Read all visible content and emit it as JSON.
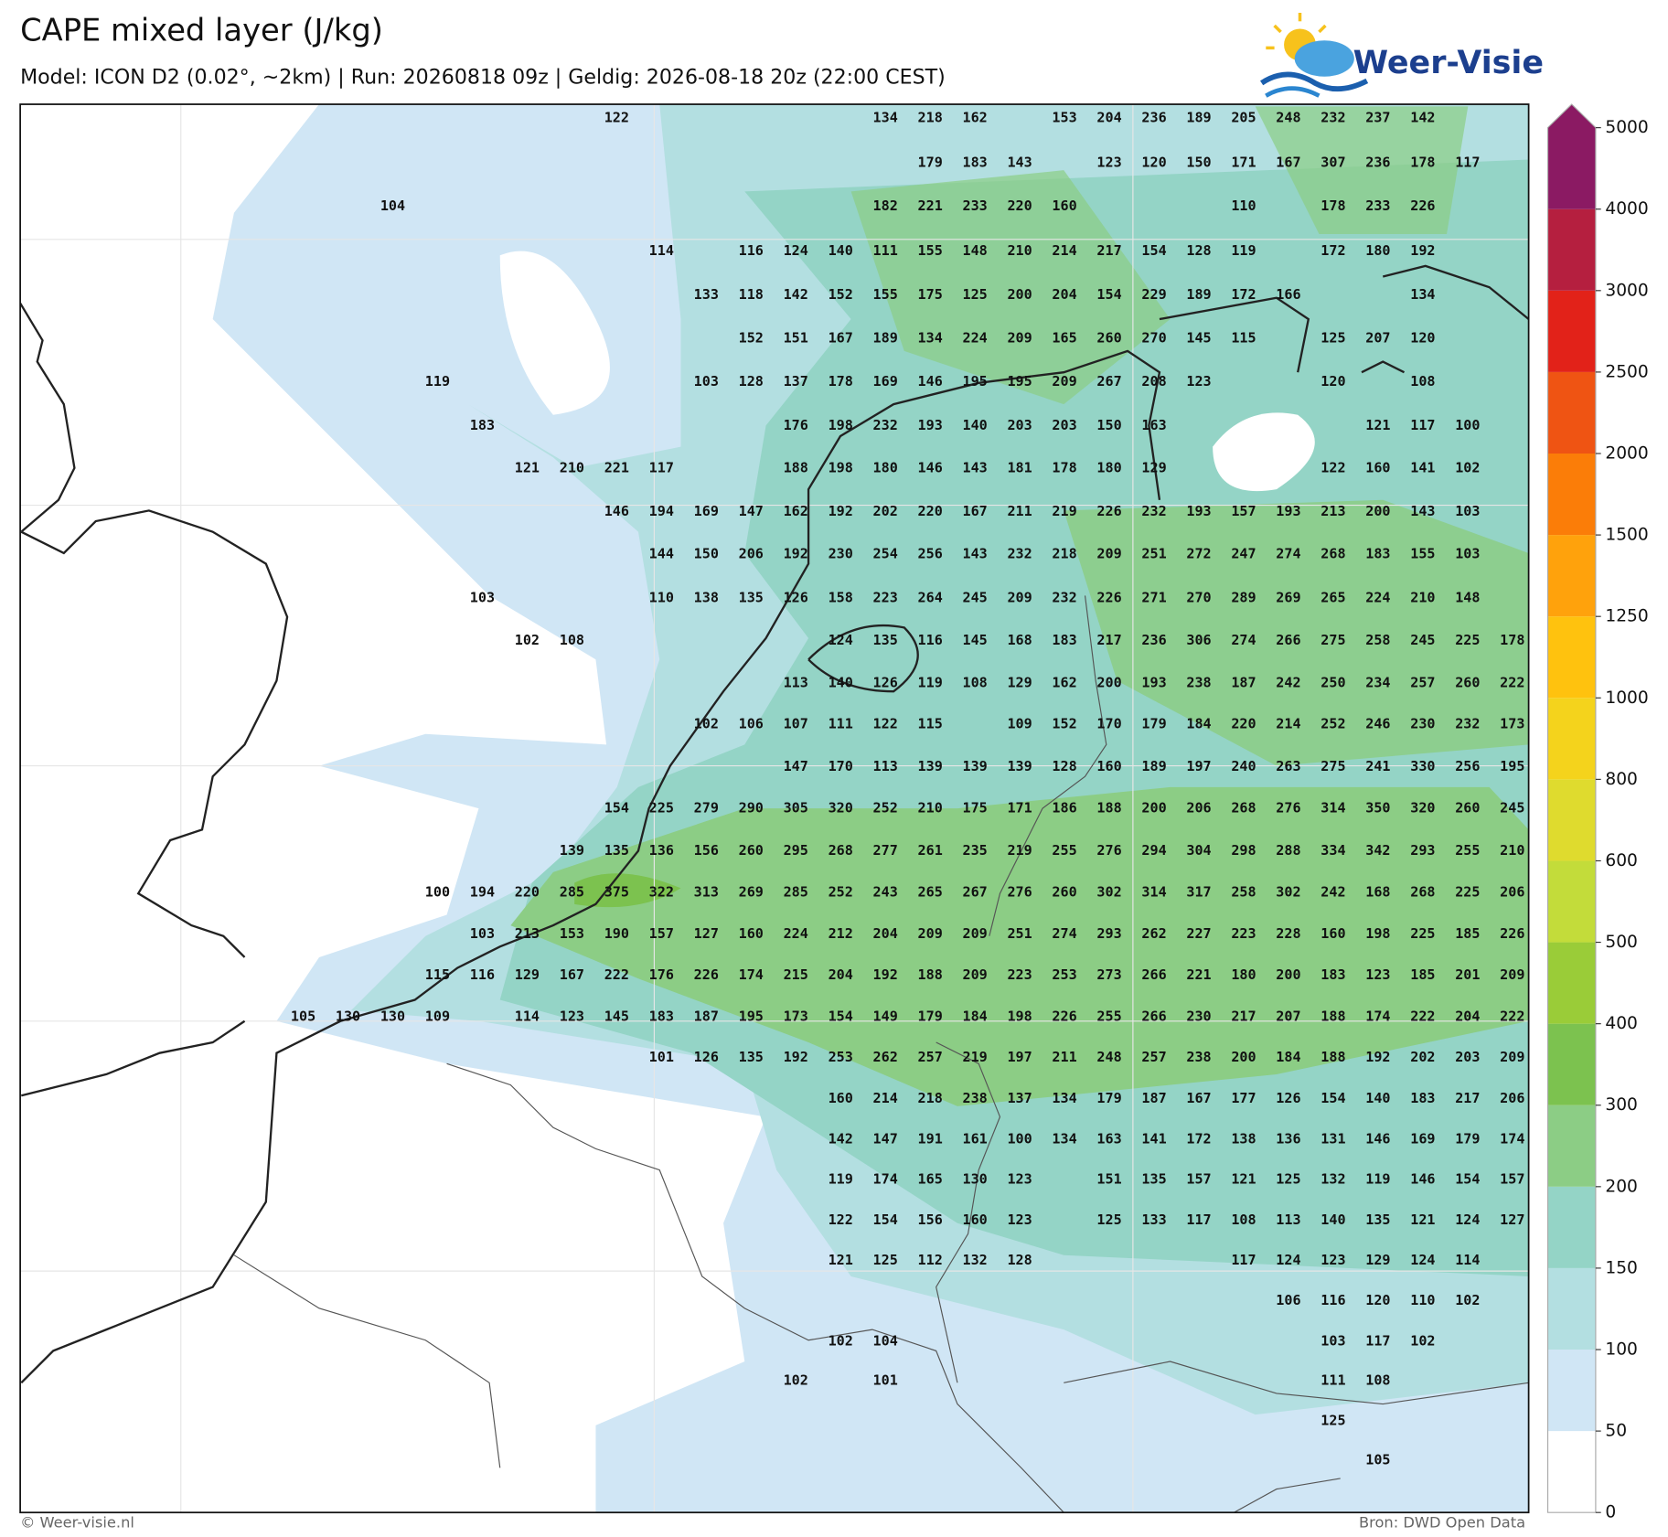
{
  "header": {
    "title": "CAPE mixed layer (J/kg)",
    "subtitle": "Model: ICON D2 (0.02°, ~2km)  |  Run: 20260818 09z  |  Geldig: 2026-08-18 20z (22:00 CEST)",
    "logo": "Weer-Visie"
  },
  "footer": {
    "left": "© Weer-visie.nl",
    "right": "Bron: DWD Open Data"
  },
  "colorbar": {
    "ticks": [
      0,
      50,
      100,
      150,
      200,
      300,
      400,
      500,
      600,
      800,
      1000,
      1250,
      1500,
      2000,
      2500,
      3000,
      4000,
      5000
    ],
    "colors": [
      "#ffffff",
      "#d0e6f5",
      "#b3dfe1",
      "#94d4c6",
      "#8ccd85",
      "#7cc24f",
      "#9acc38",
      "#c3dc3a",
      "#dfdb2e",
      "#f4d31c",
      "#ffc20e",
      "#ffa20c",
      "#fb7d08",
      "#ef5413",
      "#e22219",
      "#b51f3f",
      "#8b1a63"
    ]
  },
  "map": {
    "rows": [
      [
        null,
        null,
        null,
        null,
        null,
        null,
        null,
        122,
        null,
        null,
        null,
        null,
        null,
        134,
        218,
        162,
        null,
        153,
        204,
        236,
        189,
        205,
        248,
        232,
        237,
        142,
        null,
        null
      ],
      [
        null,
        null,
        null,
        null,
        null,
        null,
        null,
        null,
        null,
        null,
        null,
        null,
        null,
        null,
        179,
        183,
        143,
        null,
        123,
        120,
        150,
        171,
        167,
        307,
        236,
        178,
        117,
        null
      ],
      [
        null,
        null,
        104,
        null,
        null,
        null,
        null,
        null,
        null,
        null,
        null,
        null,
        null,
        182,
        221,
        233,
        220,
        160,
        null,
        null,
        null,
        110,
        null,
        178,
        233,
        226,
        null,
        null
      ],
      [
        null,
        null,
        null,
        null,
        null,
        null,
        null,
        null,
        114,
        null,
        116,
        124,
        140,
        111,
        155,
        148,
        210,
        214,
        217,
        154,
        128,
        119,
        null,
        172,
        180,
        192,
        null,
        null
      ],
      [
        null,
        null,
        null,
        null,
        null,
        null,
        null,
        null,
        null,
        133,
        118,
        142,
        152,
        155,
        175,
        125,
        200,
        204,
        154,
        229,
        189,
        172,
        166,
        null,
        null,
        134,
        null,
        null
      ],
      [
        null,
        null,
        null,
        null,
        null,
        null,
        null,
        null,
        null,
        null,
        152,
        151,
        167,
        189,
        134,
        224,
        209,
        165,
        260,
        270,
        145,
        115,
        null,
        125,
        207,
        120,
        null,
        null
      ],
      [
        null,
        null,
        null,
        119,
        null,
        null,
        null,
        null,
        null,
        103,
        128,
        137,
        178,
        169,
        146,
        195,
        195,
        209,
        267,
        208,
        123,
        null,
        null,
        120,
        null,
        108,
        null,
        null
      ],
      [
        null,
        null,
        null,
        null,
        183,
        null,
        null,
        null,
        null,
        null,
        null,
        176,
        198,
        232,
        193,
        140,
        203,
        203,
        150,
        163,
        null,
        null,
        null,
        null,
        121,
        117,
        100,
        null
      ],
      [
        null,
        null,
        null,
        null,
        null,
        121,
        210,
        221,
        117,
        null,
        null,
        188,
        198,
        180,
        146,
        143,
        181,
        178,
        180,
        129,
        null,
        null,
        null,
        122,
        160,
        141,
        102,
        null
      ],
      [
        null,
        null,
        null,
        null,
        null,
        null,
        null,
        146,
        194,
        169,
        147,
        162,
        192,
        202,
        220,
        167,
        211,
        219,
        226,
        232,
        193,
        157,
        193,
        213,
        200,
        143,
        103,
        null
      ],
      [
        null,
        null,
        null,
        null,
        null,
        null,
        null,
        null,
        144,
        150,
        206,
        192,
        230,
        254,
        256,
        143,
        232,
        218,
        209,
        251,
        272,
        247,
        274,
        268,
        183,
        155,
        103,
        null
      ],
      [
        null,
        null,
        null,
        null,
        103,
        null,
        null,
        null,
        110,
        138,
        135,
        126,
        158,
        223,
        264,
        245,
        209,
        232,
        226,
        271,
        270,
        289,
        269,
        265,
        224,
        210,
        148,
        null
      ],
      [
        null,
        null,
        null,
        null,
        null,
        102,
        108,
        null,
        null,
        null,
        null,
        null,
        124,
        135,
        116,
        145,
        168,
        183,
        217,
        236,
        306,
        274,
        266,
        275,
        258,
        245,
        225,
        178
      ],
      [
        null,
        null,
        null,
        null,
        null,
        null,
        null,
        null,
        null,
        null,
        null,
        113,
        140,
        126,
        119,
        108,
        129,
        162,
        200,
        193,
        238,
        187,
        242,
        250,
        234,
        257,
        260,
        222
      ],
      [
        null,
        null,
        null,
        null,
        null,
        null,
        null,
        null,
        null,
        102,
        106,
        107,
        111,
        122,
        115,
        null,
        109,
        152,
        170,
        179,
        184,
        220,
        214,
        252,
        246,
        230,
        232,
        173
      ],
      [
        null,
        null,
        null,
        null,
        null,
        null,
        null,
        null,
        null,
        null,
        null,
        147,
        170,
        113,
        139,
        139,
        139,
        128,
        160,
        189,
        197,
        240,
        263,
        275,
        241,
        330,
        256,
        195
      ],
      [
        null,
        null,
        null,
        null,
        null,
        null,
        null,
        154,
        225,
        279,
        290,
        305,
        320,
        252,
        210,
        175,
        171,
        186,
        188,
        200,
        206,
        268,
        276,
        314,
        350,
        320,
        260,
        245
      ],
      [
        null,
        null,
        null,
        null,
        null,
        null,
        139,
        135,
        136,
        156,
        260,
        295,
        268,
        277,
        261,
        235,
        219,
        255,
        276,
        294,
        304,
        298,
        288,
        334,
        342,
        293,
        255,
        210
      ],
      [
        null,
        null,
        null,
        100,
        194,
        220,
        285,
        375,
        322,
        313,
        269,
        285,
        252,
        243,
        265,
        267,
        276,
        260,
        302,
        314,
        317,
        258,
        302,
        242,
        168,
        268,
        225,
        206
      ],
      [
        null,
        null,
        null,
        null,
        103,
        213,
        153,
        190,
        157,
        127,
        160,
        224,
        212,
        204,
        209,
        209,
        251,
        274,
        293,
        262,
        227,
        223,
        228,
        160,
        198,
        225,
        185,
        226
      ],
      [
        null,
        null,
        null,
        115,
        116,
        129,
        167,
        222,
        176,
        226,
        174,
        215,
        204,
        192,
        188,
        209,
        223,
        253,
        273,
        266,
        221,
        180,
        200,
        183,
        123,
        185,
        201,
        209
      ],
      [
        105,
        130,
        130,
        109,
        null,
        114,
        123,
        145,
        183,
        187,
        195,
        173,
        154,
        149,
        179,
        184,
        198,
        226,
        255,
        266,
        230,
        217,
        207,
        188,
        174,
        222,
        204,
        222
      ],
      [
        null,
        null,
        null,
        null,
        null,
        null,
        null,
        null,
        101,
        126,
        135,
        192,
        253,
        262,
        257,
        219,
        197,
        211,
        248,
        257,
        238,
        200,
        184,
        188,
        192,
        202,
        203,
        209
      ],
      [
        null,
        null,
        null,
        null,
        null,
        null,
        null,
        null,
        null,
        null,
        null,
        null,
        160,
        214,
        218,
        238,
        137,
        134,
        179,
        187,
        167,
        177,
        126,
        154,
        140,
        183,
        217,
        206
      ],
      [
        null,
        null,
        null,
        null,
        null,
        null,
        null,
        null,
        null,
        null,
        null,
        null,
        142,
        147,
        191,
        161,
        100,
        134,
        163,
        141,
        172,
        138,
        136,
        131,
        146,
        169,
        179,
        174
      ],
      [
        null,
        null,
        null,
        null,
        null,
        null,
        null,
        null,
        null,
        null,
        null,
        null,
        119,
        174,
        165,
        130,
        123,
        null,
        151,
        135,
        157,
        121,
        125,
        132,
        119,
        146,
        154,
        157
      ],
      [
        null,
        null,
        null,
        null,
        null,
        null,
        null,
        null,
        null,
        null,
        null,
        null,
        122,
        154,
        156,
        160,
        123,
        null,
        125,
        133,
        117,
        108,
        113,
        140,
        135,
        121,
        124,
        127
      ],
      [
        null,
        null,
        null,
        null,
        null,
        null,
        null,
        null,
        null,
        null,
        null,
        null,
        121,
        125,
        112,
        132,
        128,
        null,
        null,
        null,
        null,
        117,
        124,
        123,
        129,
        124,
        114,
        null
      ],
      [
        null,
        null,
        null,
        null,
        null,
        null,
        null,
        null,
        null,
        null,
        null,
        null,
        null,
        null,
        null,
        null,
        null,
        null,
        null,
        null,
        null,
        null,
        106,
        116,
        120,
        110,
        102,
        null
      ],
      [
        null,
        null,
        null,
        null,
        null,
        null,
        null,
        null,
        null,
        null,
        null,
        null,
        102,
        104,
        null,
        null,
        null,
        null,
        null,
        null,
        null,
        null,
        null,
        103,
        117,
        102,
        null,
        null
      ],
      [
        null,
        null,
        null,
        null,
        null,
        null,
        null,
        null,
        null,
        null,
        null,
        102,
        null,
        101,
        null,
        null,
        null,
        null,
        null,
        null,
        null,
        null,
        null,
        111,
        108,
        null,
        null,
        null
      ],
      [
        null,
        null,
        null,
        null,
        null,
        null,
        null,
        null,
        null,
        null,
        null,
        null,
        null,
        null,
        null,
        null,
        null,
        null,
        null,
        null,
        null,
        null,
        null,
        125,
        null,
        null,
        null,
        null
      ],
      [
        null,
        null,
        null,
        null,
        null,
        null,
        null,
        null,
        null,
        null,
        null,
        null,
        null,
        null,
        null,
        null,
        null,
        null,
        null,
        null,
        null,
        null,
        null,
        null,
        105,
        null,
        null,
        null
      ]
    ]
  }
}
